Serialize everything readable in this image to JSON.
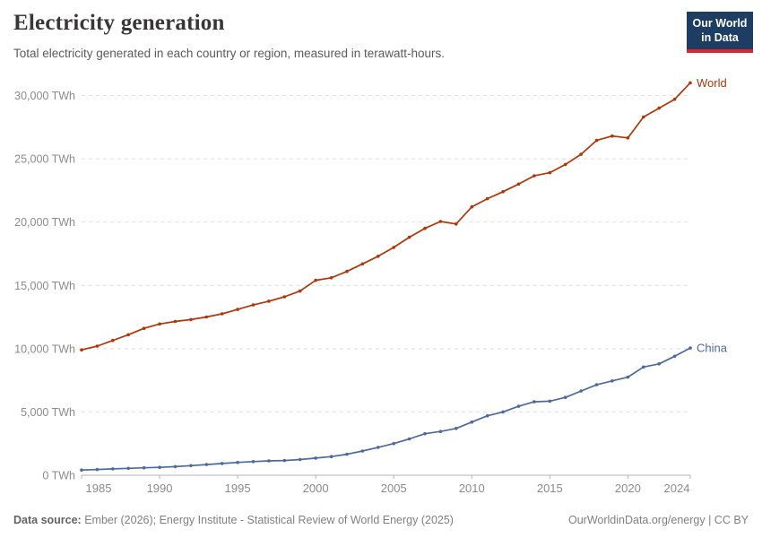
{
  "header": {
    "title": "Electricity generation",
    "subtitle": "Total electricity generated in each country or region, measured in terawatt-hours.",
    "logo": {
      "line1": "Our World",
      "line2": "in Data"
    }
  },
  "footer": {
    "datasource_label": "Data source:",
    "datasource_text": " Ember (2026); Energy Institute - Statistical Review of World Energy (2025)",
    "rights": "OurWorldinData.org/energy | CC BY"
  },
  "colors": {
    "world_series": "#b13507",
    "china_series": "#4c6a9c",
    "gridline": "#dedede",
    "axis_line": "#b3b3b3",
    "tick_label": "#8b8b8b",
    "logo_bg": "#1d3d63",
    "logo_stripe": "#e0262c"
  },
  "chart_data": {
    "type": "line",
    "title": "Electricity generation",
    "xlabel": "",
    "ylabel": "terawatt-hours (TWh)",
    "xlim": [
      1985,
      2024
    ],
    "ylim": [
      0,
      31500
    ],
    "grid": "horizontal-dashed",
    "legend_position": "line-end-labels",
    "x": [
      1985,
      1986,
      1987,
      1988,
      1989,
      1990,
      1991,
      1992,
      1993,
      1994,
      1995,
      1996,
      1997,
      1998,
      1999,
      2000,
      2001,
      2002,
      2003,
      2004,
      2005,
      2006,
      2007,
      2008,
      2009,
      2010,
      2011,
      2012,
      2013,
      2014,
      2015,
      2016,
      2017,
      2018,
      2019,
      2020,
      2021,
      2022,
      2023,
      2024
    ],
    "series": [
      {
        "name": "World",
        "color_key": "world_series",
        "values": [
          9900,
          10200,
          10650,
          11100,
          11600,
          11950,
          12150,
          12300,
          12500,
          12750,
          13100,
          13450,
          13750,
          14100,
          14550,
          15400,
          15600,
          16100,
          16700,
          17300,
          18000,
          18800,
          19500,
          20050,
          19850,
          21200,
          21850,
          22400,
          23000,
          23650,
          23900,
          24550,
          25350,
          26450,
          26800,
          26650,
          28300,
          29000,
          29700,
          31000
        ]
      },
      {
        "name": "China",
        "color_key": "china_series",
        "values": [
          410,
          450,
          500,
          545,
          585,
          620,
          680,
          755,
          840,
          930,
          1010,
          1080,
          1135,
          1160,
          1240,
          1355,
          1470,
          1655,
          1910,
          2200,
          2500,
          2870,
          3280,
          3460,
          3700,
          4200,
          4700,
          5000,
          5450,
          5800,
          5850,
          6150,
          6650,
          7150,
          7450,
          7750,
          8550,
          8800,
          9400,
          10050
        ]
      }
    ],
    "x_ticks": [
      {
        "value": 1985,
        "label": "1985"
      },
      {
        "value": 1990,
        "label": "1990"
      },
      {
        "value": 1995,
        "label": "1995"
      },
      {
        "value": 2000,
        "label": "2000"
      },
      {
        "value": 2005,
        "label": "2005"
      },
      {
        "value": 2010,
        "label": "2010"
      },
      {
        "value": 2015,
        "label": "2015"
      },
      {
        "value": 2020,
        "label": "2020"
      },
      {
        "value": 2024,
        "label": "2024"
      }
    ],
    "y_ticks": [
      {
        "value": 0,
        "label": "0 TWh"
      },
      {
        "value": 5000,
        "label": "5,000 TWh"
      },
      {
        "value": 10000,
        "label": "10,000 TWh"
      },
      {
        "value": 15000,
        "label": "15,000 TWh"
      },
      {
        "value": 20000,
        "label": "20,000 TWh"
      },
      {
        "value": 25000,
        "label": "25,000 TWh"
      },
      {
        "value": 30000,
        "label": "30,000 TWh"
      }
    ]
  }
}
